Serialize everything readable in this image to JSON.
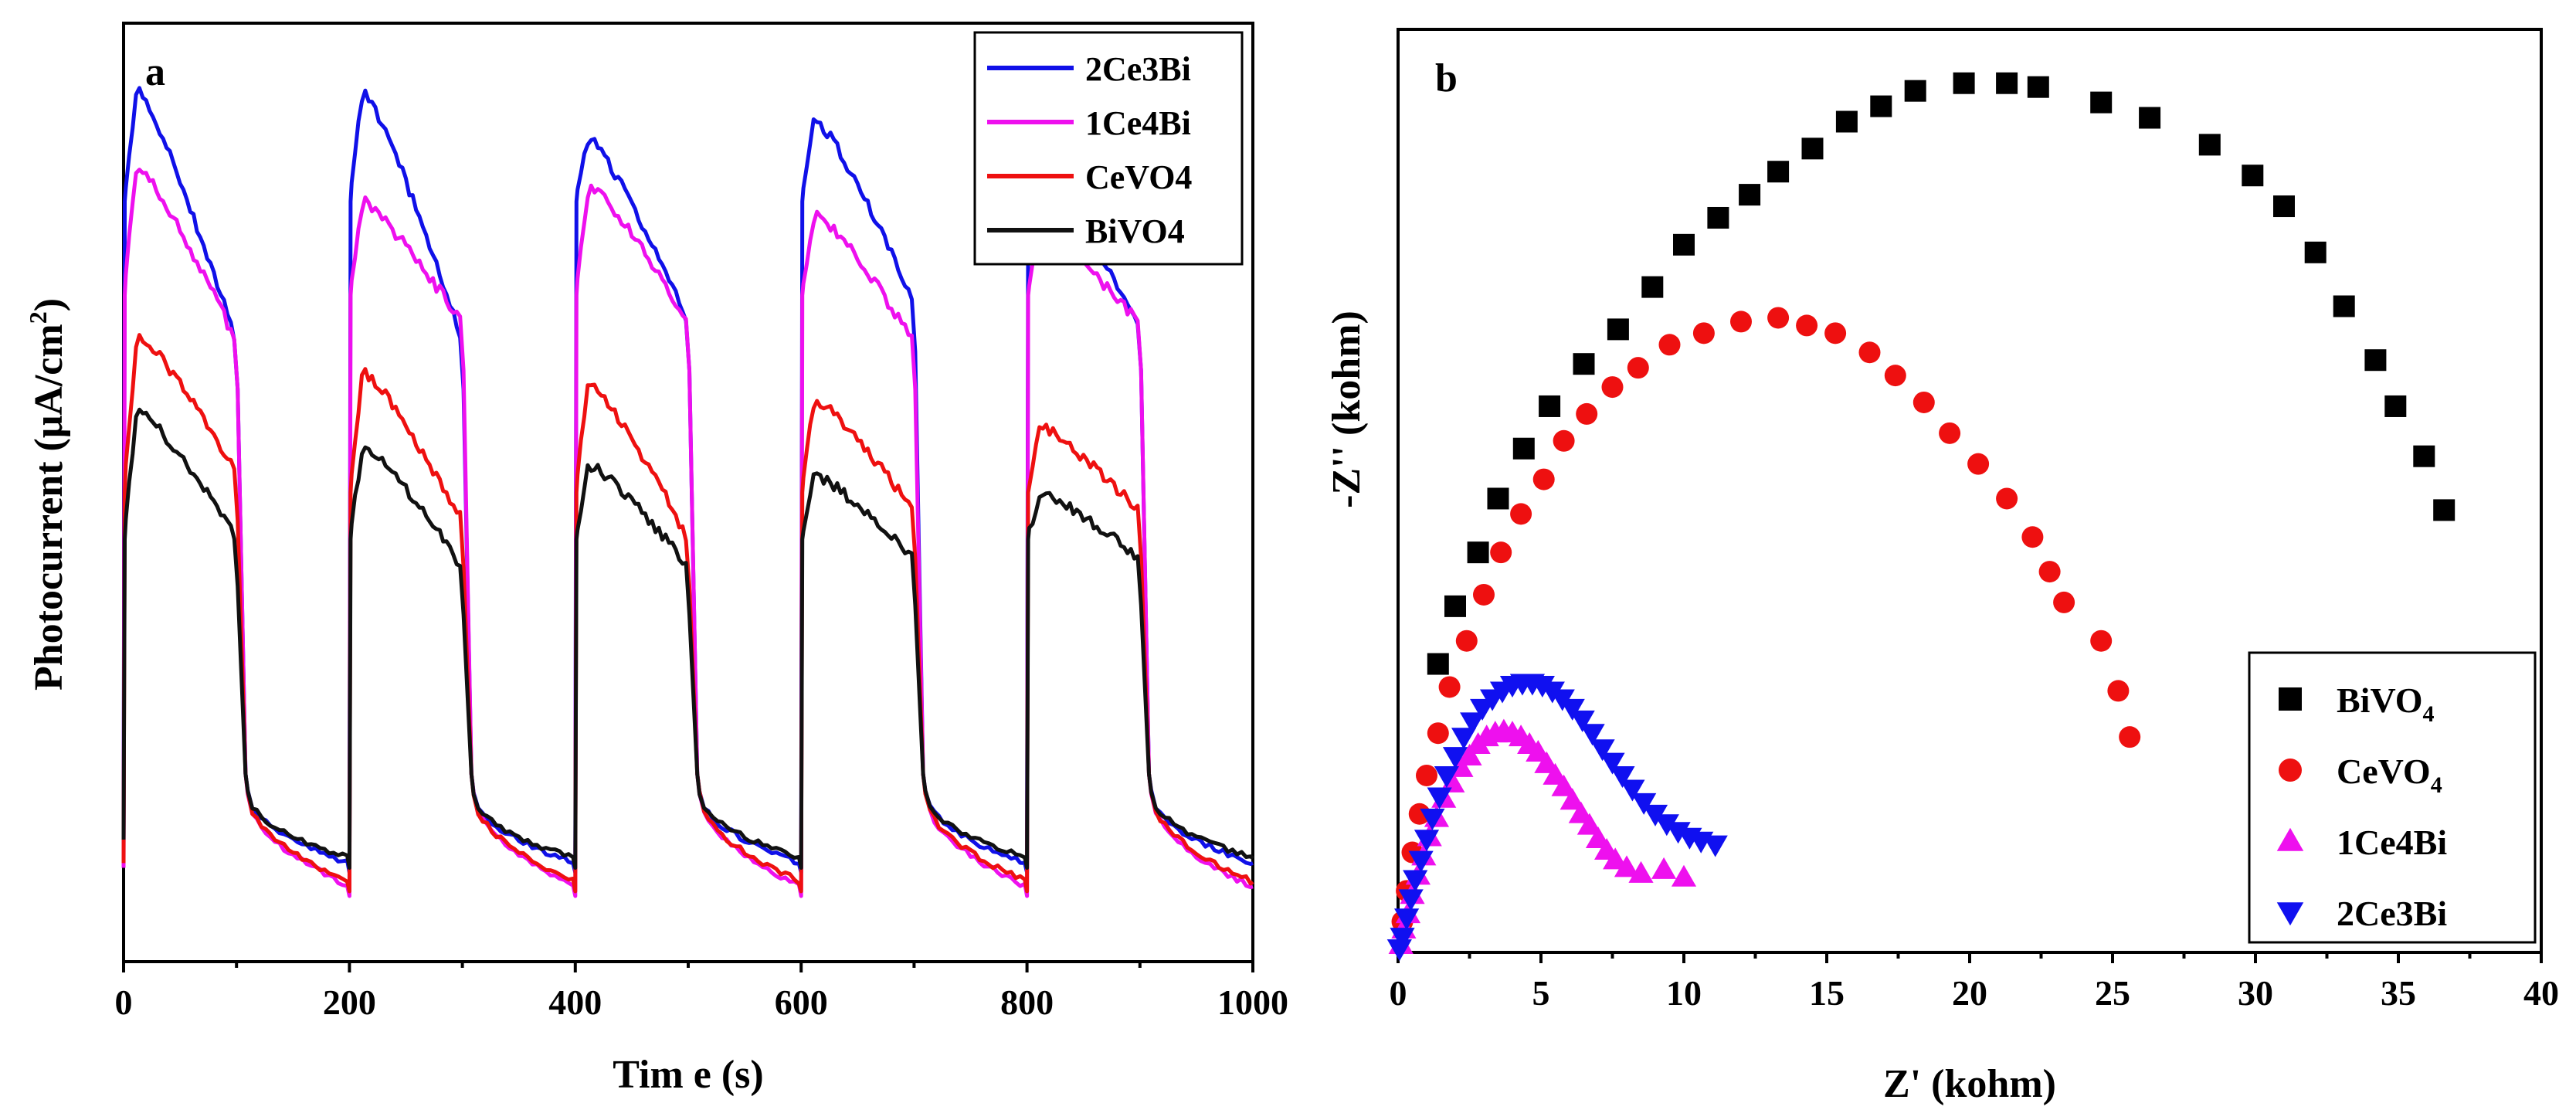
{
  "chart_data": [
    {
      "panel": "a",
      "type": "line",
      "xlabel": "Tim e (s)",
      "ylabel_main": "Photocurrent (",
      "ylabel_unit": "μA/cm",
      "ylabel_sup": "2",
      "ylabel_end": ")",
      "xlim": [
        0,
        1000
      ],
      "ylim": [
        0,
        1
      ],
      "xticks": [
        0,
        200,
        400,
        600,
        800,
        1000
      ],
      "legend_position": "top-right",
      "series": [
        {
          "name": "2Ce3Bi",
          "color": "#1010e8",
          "light_off": 0.105,
          "light_on": 0.93,
          "peak_decay": [
            0.93,
            0.93,
            0.88,
            0.9,
            0.83
          ],
          "before_off": [
            0.66,
            0.66,
            0.68,
            0.7,
            0.68
          ]
        },
        {
          "name": "1Ce4Bi",
          "color": "#ee10ee",
          "light_off": 0.08,
          "light_on": 0.83,
          "peak_decay": [
            0.85,
            0.81,
            0.83,
            0.8,
            0.78
          ],
          "before_off": [
            0.66,
            0.68,
            0.68,
            0.66,
            0.68
          ]
        },
        {
          "name": "CeVO4",
          "color": "#ee1010",
          "light_off": 0.085,
          "light_on": 0.62,
          "peak_decay": [
            0.67,
            0.63,
            0.62,
            0.6,
            0.57
          ],
          "before_off": [
            0.52,
            0.47,
            0.45,
            0.48,
            0.48
          ]
        },
        {
          "name": "BiVO4",
          "color": "#111111",
          "light_off": 0.11,
          "light_on": 0.57,
          "peak_decay": [
            0.59,
            0.55,
            0.53,
            0.52,
            0.5
          ],
          "before_off": [
            0.45,
            0.42,
            0.42,
            0.43,
            0.43
          ]
        }
      ]
    },
    {
      "panel": "b",
      "type": "scatter",
      "xlabel": "Z' (kohm)",
      "ylabel": "-Z'' (kohm)",
      "xlim": [
        0,
        40
      ],
      "ylim": [
        0,
        24
      ],
      "xticks": [
        0,
        5,
        10,
        15,
        20,
        25,
        30,
        35,
        40
      ],
      "legend_position": "bottom-right",
      "series": [
        {
          "name": "BiVO",
          "sub": "4",
          "color": "#000000",
          "marker": "square",
          "x": [
            1.4,
            2,
            2.8,
            3.5,
            4.4,
            5.3,
            6.5,
            7.7,
            8.9,
            10,
            11.2,
            12.3,
            13.3,
            14.5,
            15.7,
            16.9,
            18.1,
            19.8,
            21.3,
            22.4,
            24.6,
            26.3,
            28.4,
            29.9,
            31.0,
            32.1,
            33.1,
            34.2,
            34.9,
            35.9,
            36.6
          ],
          "y": [
            7.5,
            9.0,
            10.4,
            11.8,
            13.1,
            14.2,
            15.3,
            16.2,
            17.3,
            18.4,
            19.1,
            19.7,
            20.3,
            20.9,
            21.6,
            22.0,
            22.4,
            22.6,
            22.6,
            22.5,
            22.1,
            21.7,
            21.0,
            20.2,
            19.4,
            18.2,
            16.8,
            15.4,
            14.2,
            12.9,
            11.5
          ]
        },
        {
          "name": "CeVO",
          "sub": "4",
          "color": "#ee1010",
          "marker": "circle",
          "x": [
            0.15,
            0.3,
            0.5,
            0.75,
            1.0,
            1.4,
            1.8,
            2.4,
            3.0,
            3.6,
            4.3,
            5.1,
            5.8,
            6.6,
            7.5,
            8.4,
            9.5,
            10.7,
            12.0,
            13.3,
            14.3,
            15.3,
            16.5,
            17.4,
            18.4,
            19.3,
            20.3,
            21.3,
            22.2,
            22.8,
            23.3,
            24.6,
            25.2,
            25.6
          ],
          "y": [
            0.8,
            1.6,
            2.6,
            3.6,
            4.6,
            5.7,
            6.9,
            8.1,
            9.3,
            10.4,
            11.4,
            12.3,
            13.3,
            14.0,
            14.7,
            15.2,
            15.8,
            16.1,
            16.4,
            16.5,
            16.3,
            16.1,
            15.6,
            15.0,
            14.3,
            13.5,
            12.7,
            11.8,
            10.8,
            9.9,
            9.1,
            8.1,
            6.8,
            5.6
          ]
        },
        {
          "name": "1Ce4Bi",
          "sub": "",
          "color": "#ee10ee",
          "marker": "triangle-up",
          "x": [
            0.1,
            0.2,
            0.35,
            0.5,
            0.7,
            0.9,
            1.1,
            1.35,
            1.6,
            1.9,
            2.2,
            2.5,
            2.8,
            3.1,
            3.4,
            3.7,
            4.0,
            4.3,
            4.6,
            4.9,
            5.2,
            5.5,
            5.8,
            6.1,
            6.4,
            6.7,
            7.0,
            7.3,
            7.6,
            8.0,
            8.5,
            9.3,
            10.0
          ],
          "y": [
            0.2,
            0.6,
            1.0,
            1.5,
            2.0,
            2.5,
            3.0,
            3.5,
            4.0,
            4.4,
            4.8,
            5.1,
            5.4,
            5.6,
            5.7,
            5.75,
            5.7,
            5.6,
            5.4,
            5.2,
            4.9,
            4.6,
            4.3,
            3.95,
            3.6,
            3.3,
            2.95,
            2.65,
            2.4,
            2.2,
            2.05,
            2.15,
            1.95
          ]
        },
        {
          "name": "2Ce3Bi",
          "sub": "",
          "color": "#1010f0",
          "marker": "triangle-down",
          "x": [
            0.05,
            0.15,
            0.3,
            0.45,
            0.6,
            0.8,
            1.0,
            1.2,
            1.45,
            1.7,
            2.0,
            2.3,
            2.6,
            2.95,
            3.3,
            3.65,
            4.0,
            4.35,
            4.7,
            5.05,
            5.4,
            5.75,
            6.1,
            6.45,
            6.8,
            7.15,
            7.5,
            7.85,
            8.2,
            8.6,
            9.0,
            9.4,
            9.8,
            10.2,
            10.6,
            11.1
          ],
          "y": [
            0.1,
            0.4,
            0.9,
            1.4,
            1.9,
            2.4,
            2.95,
            3.5,
            4.05,
            4.6,
            5.1,
            5.6,
            6.0,
            6.35,
            6.6,
            6.8,
            6.95,
            7.0,
            7.0,
            6.95,
            6.8,
            6.6,
            6.35,
            6.05,
            5.7,
            5.3,
            4.95,
            4.6,
            4.25,
            3.9,
            3.6,
            3.35,
            3.15,
            3.0,
            2.9,
            2.8
          ]
        }
      ]
    }
  ]
}
